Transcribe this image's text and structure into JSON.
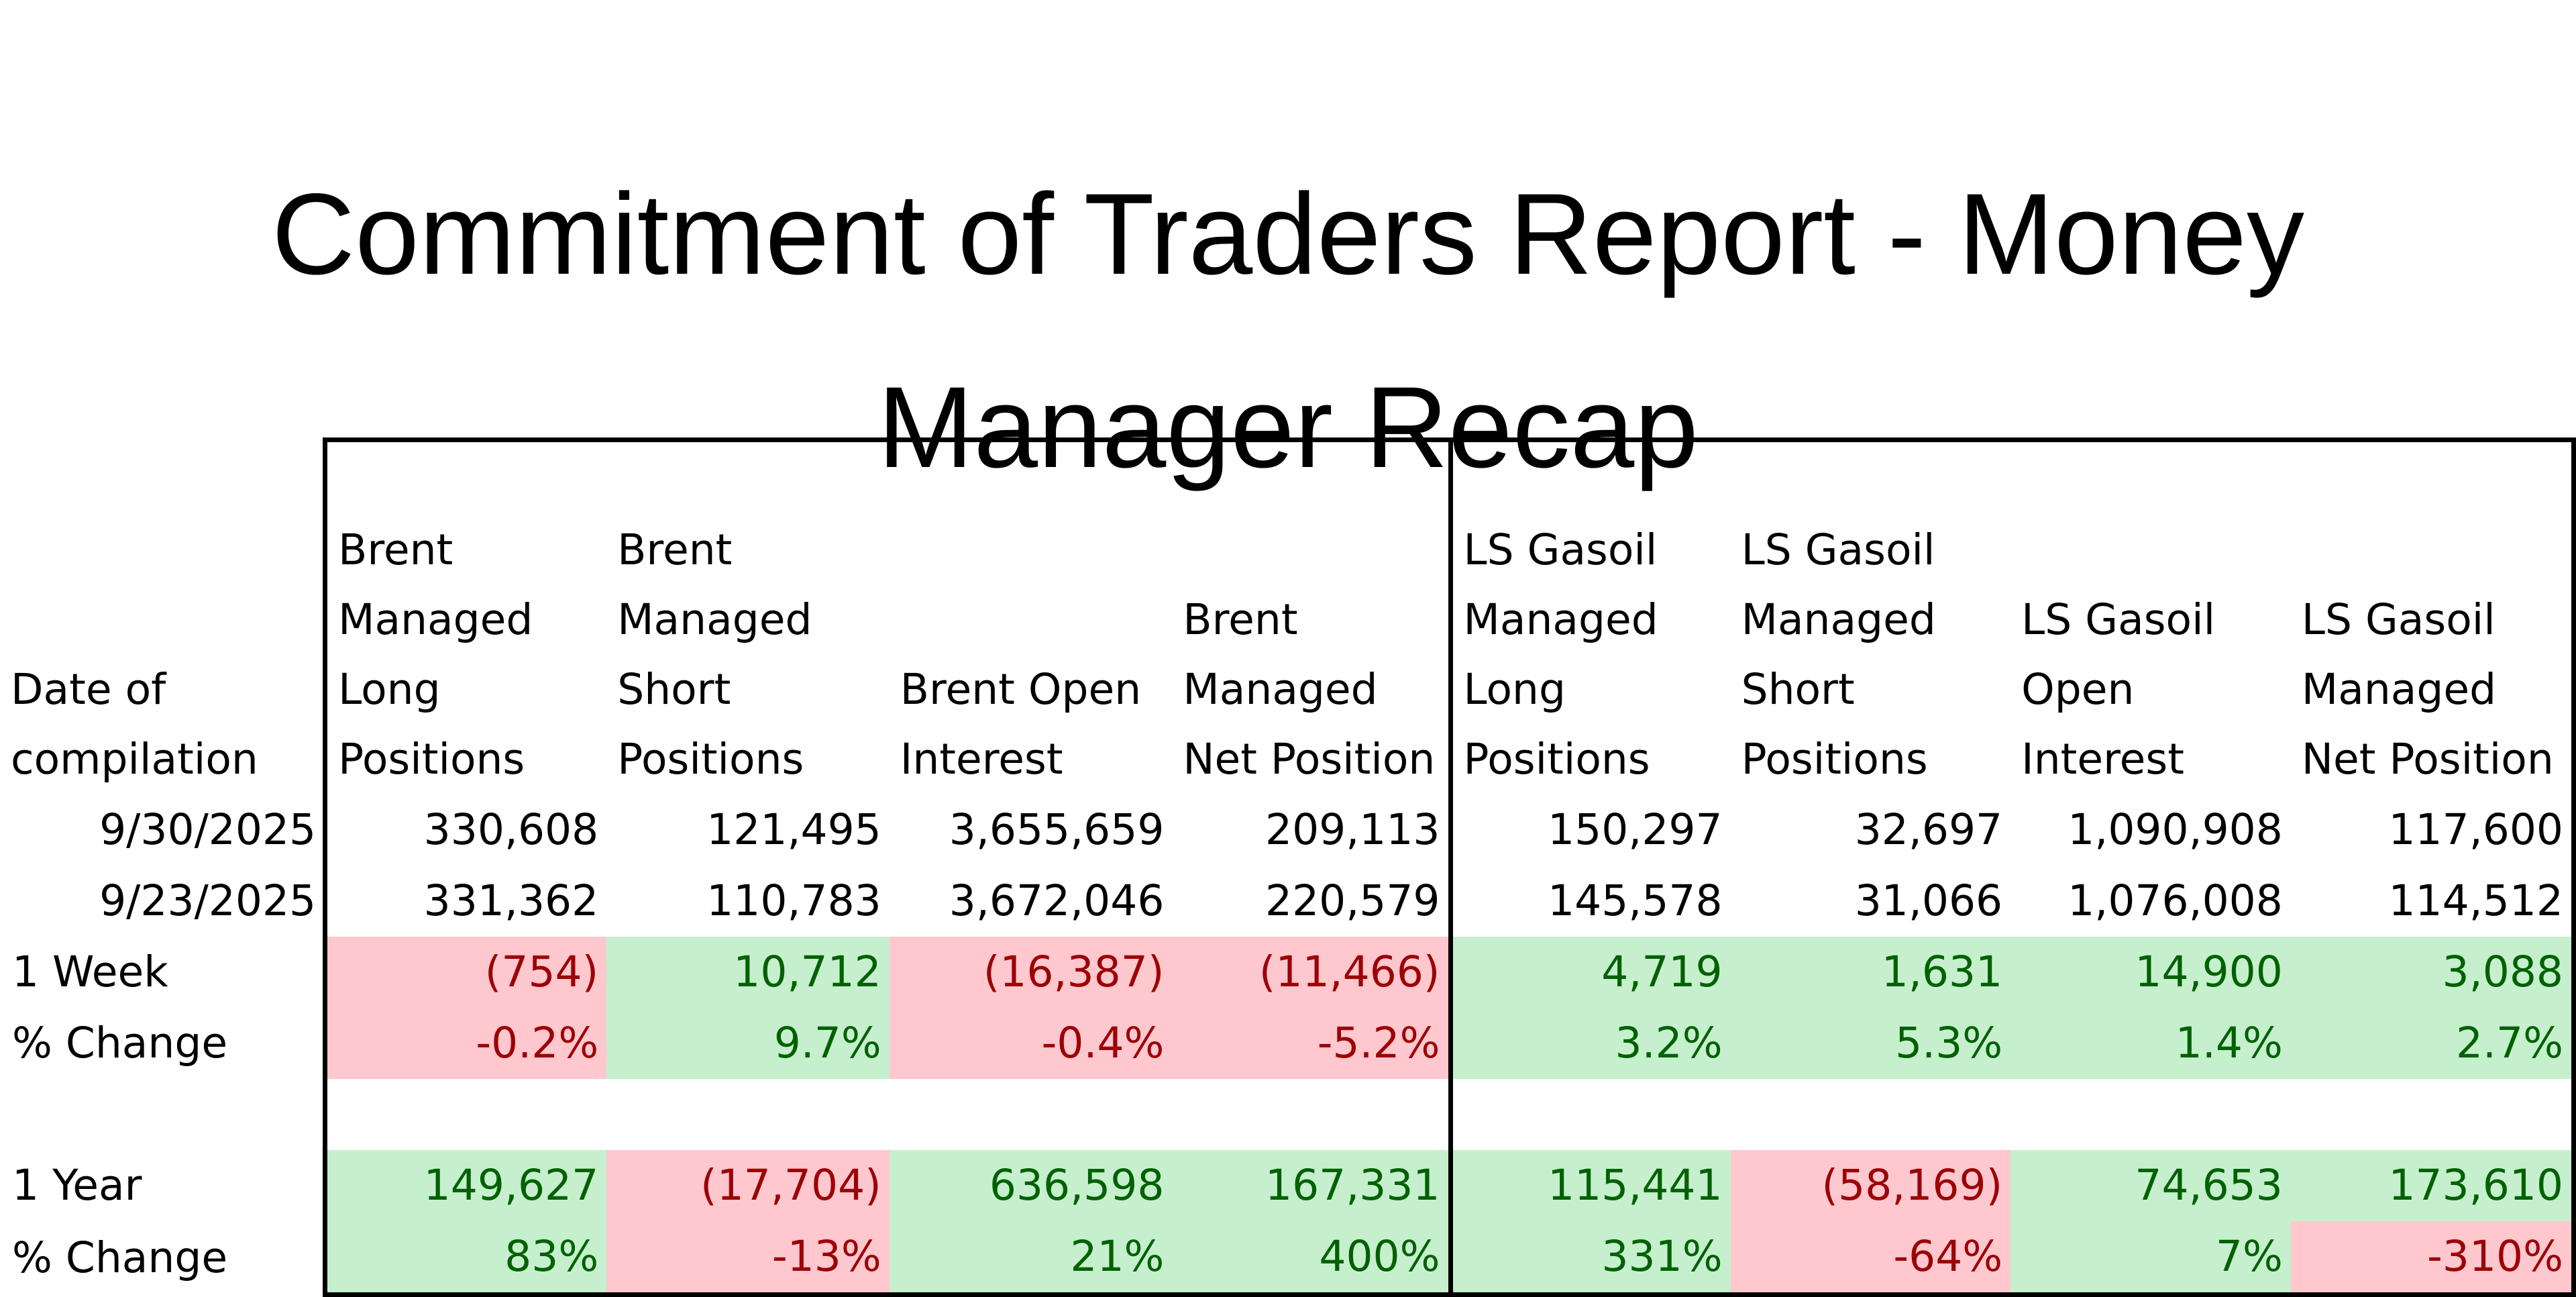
{
  "title": {
    "line1": "Commitment of Traders Report - Money",
    "line2": "Manager Recap"
  },
  "columns": [
    "Date of compilation",
    "Brent Managed Long Positions",
    "Brent Managed Short Positions",
    "Brent Open Interest",
    "Brent Managed Net Position",
    "LS Gasoil Managed Long Positions",
    "LS Gasoil Managed Short Positions",
    "LS Gasoil Open Interest",
    "LS Gasoil Managed Net Position"
  ],
  "rows": [
    {
      "label": "9/30/2025",
      "values": [
        "330,608",
        "121,495",
        "3,655,659",
        "209,113",
        "150,297",
        "32,697",
        "1,090,908",
        "117,600"
      ]
    },
    {
      "label": "9/23/2025",
      "values": [
        "331,362",
        "110,783",
        "3,672,046",
        "220,579",
        "145,578",
        "31,066",
        "1,076,008",
        "114,512"
      ]
    },
    {
      "label": "1 Week",
      "values": [
        "(754)",
        "10,712",
        "(16,387)",
        "(11,466)",
        "4,719",
        "1,631",
        "14,900",
        "3,088"
      ]
    },
    {
      "label": "% Change",
      "values": [
        "-0.2%",
        "9.7%",
        "-0.4%",
        "-5.2%",
        "3.2%",
        "5.3%",
        "1.4%",
        "2.7%"
      ]
    },
    {
      "label": "1 Year",
      "values": [
        "149,627",
        "(17,704)",
        "636,598",
        "167,331",
        "115,441",
        "(58,169)",
        "74,653",
        "173,610"
      ]
    },
    {
      "label": "% Change",
      "values": [
        "83%",
        "-13%",
        "21%",
        "400%",
        "331%",
        "-64%",
        "7%",
        "-310%"
      ]
    }
  ],
  "colors": {
    "positive_fill": "#c6efce",
    "positive_text": "#006100",
    "negative_fill": "#ffc7ce",
    "negative_text": "#9c0006"
  }
}
